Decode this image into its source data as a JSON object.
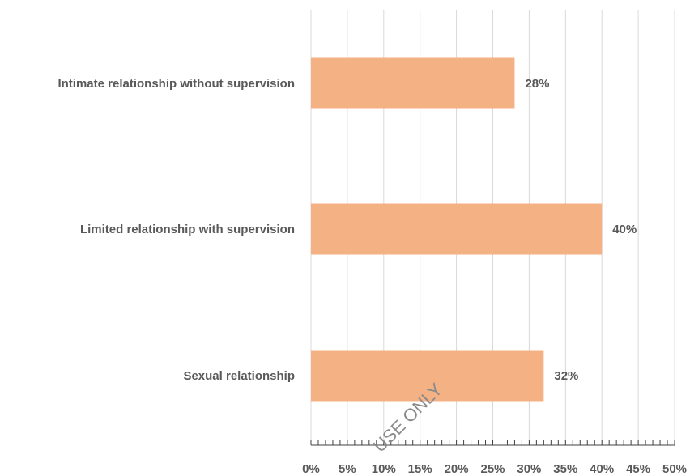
{
  "chart_data": {
    "type": "bar",
    "orientation": "horizontal",
    "categories": [
      "Intimate relationship without supervision",
      "Limited relationship with supervision",
      "Sexual relationship"
    ],
    "values": [
      28,
      40,
      32
    ],
    "value_labels": [
      "28%",
      "40%",
      "32%"
    ],
    "xlim": [
      0,
      50
    ],
    "x_ticks": [
      0,
      5,
      10,
      15,
      20,
      25,
      30,
      35,
      40,
      45,
      50
    ],
    "x_tick_labels": [
      "0%",
      "5%",
      "10%",
      "15%",
      "20%",
      "25%",
      "30%",
      "35%",
      "40%",
      "45%",
      "50%"
    ],
    "title": "",
    "xlabel": "",
    "ylabel": "",
    "grid": "vertical",
    "legend": "none",
    "bar_color": "#F4B183",
    "grid_color": "#d9d9d9",
    "text_color": "#595959"
  },
  "watermark": {
    "text": "USE ONLY"
  }
}
